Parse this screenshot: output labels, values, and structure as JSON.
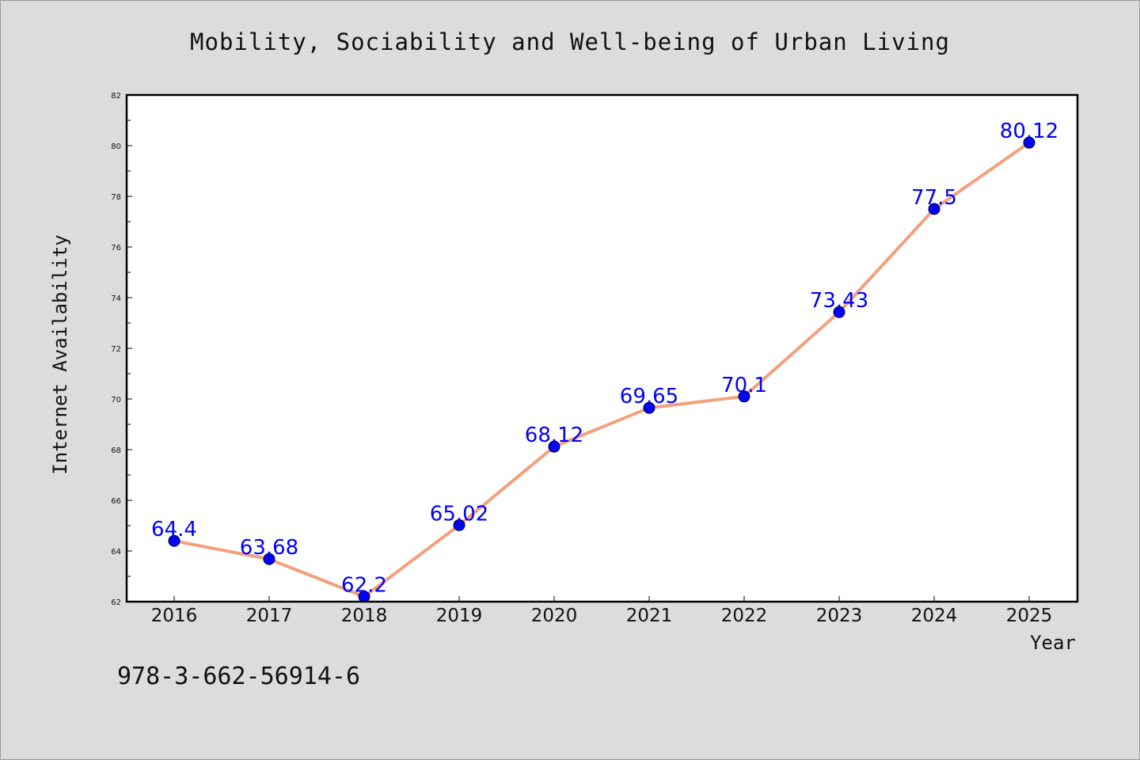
{
  "chart_data": {
    "type": "line",
    "title": "Mobility, Sociability and Well-being of Urban Living",
    "xlabel": "Year",
    "ylabel": "Internet Availability",
    "categories": [
      "2016",
      "2017",
      "2018",
      "2019",
      "2020",
      "2021",
      "2022",
      "2023",
      "2024",
      "2025"
    ],
    "values": [
      64.4,
      63.68,
      62.2,
      65.02,
      68.12,
      69.65,
      70.1,
      73.43,
      77.5,
      80.12
    ],
    "data_labels": [
      "64.4",
      "63.68",
      "62.2",
      "65.02",
      "68.12",
      "69.65",
      "70.1",
      "73.43",
      "77.5",
      "80.12"
    ],
    "ylim": [
      62,
      82
    ],
    "yticks": [
      "62",
      "64",
      "66",
      "68",
      "70",
      "72",
      "74",
      "76",
      "78",
      "80",
      "82"
    ],
    "grid": false,
    "line_color": "#f4a07c",
    "marker_color": "#0000ff",
    "label_color": "#0000ff"
  },
  "footer": {
    "isbn": "978-3-662-56914-6"
  }
}
